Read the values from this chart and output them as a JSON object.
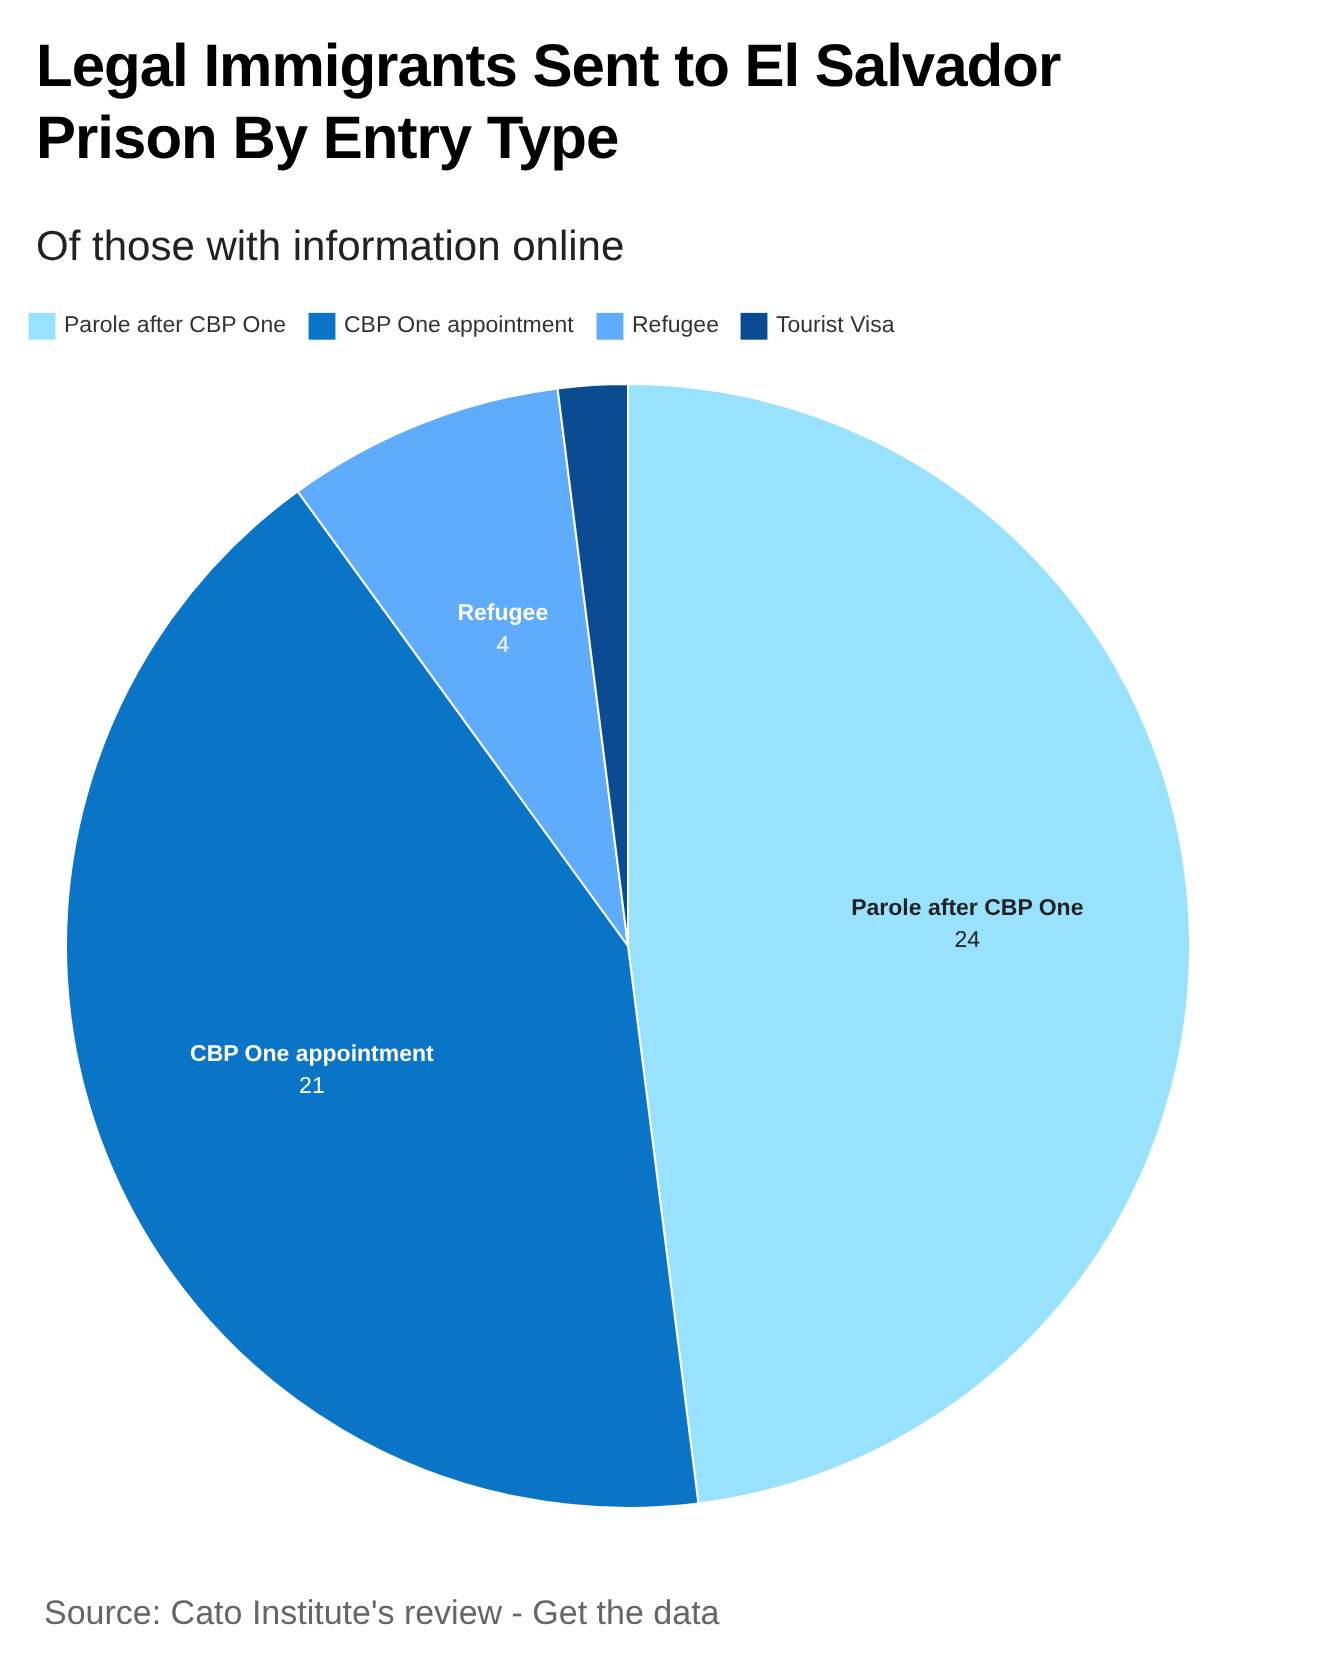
{
  "chart_data": {
    "type": "pie",
    "title": "Legal Immigrants Sent to El Salvador Prison By Entry Type",
    "subtitle": "Of those with information online",
    "categories": [
      "Parole after CBP One",
      "CBP One appointment",
      "Refugee",
      "Tourist Visa"
    ],
    "values": [
      24,
      21,
      4,
      1
    ],
    "colors": [
      "#99e2fe",
      "#0a75c6",
      "#5eacfb",
      "#0b4b91"
    ],
    "value_labels": [
      "24",
      "21",
      "4",
      null
    ],
    "legend": "top left",
    "annotations": [
      "Source: Cato Institute's review - Get the data"
    ]
  }
}
